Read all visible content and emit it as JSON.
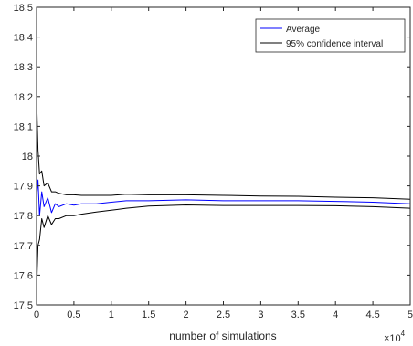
{
  "chart_data": {
    "type": "line",
    "xlabel": "number of simulations",
    "x_exponent_label": "×10",
    "x_exponent_power": "4",
    "xlim": [
      0,
      5
    ],
    "ylim": [
      17.5,
      18.5
    ],
    "xticks": [
      "0",
      "0.5",
      "1",
      "1.5",
      "2",
      "2.5",
      "3",
      "3.5",
      "4",
      "4.5",
      "5"
    ],
    "yticks": [
      "17.5",
      "17.6",
      "17.7",
      "17.8",
      "17.9",
      "18",
      "18.1",
      "18.2",
      "18.3",
      "18.4",
      "18.5"
    ],
    "grid": false,
    "legend_position": "top-right",
    "series": [
      {
        "name": "Average",
        "color": "#0000ff",
        "x": [
          0.0,
          0.02,
          0.04,
          0.07,
          0.1,
          0.15,
          0.2,
          0.25,
          0.3,
          0.4,
          0.5,
          0.6,
          0.8,
          1.0,
          1.2,
          1.5,
          2.0,
          2.5,
          3.0,
          3.5,
          4.0,
          4.5,
          5.0
        ],
        "values": [
          17.86,
          17.92,
          17.8,
          17.88,
          17.83,
          17.86,
          17.81,
          17.84,
          17.83,
          17.84,
          17.835,
          17.84,
          17.84,
          17.845,
          17.85,
          17.85,
          17.853,
          17.85,
          17.85,
          17.85,
          17.848,
          17.845,
          17.84
        ]
      },
      {
        "name": "95% confidence interval",
        "color": "#000000",
        "x": [
          0.0,
          0.02,
          0.04,
          0.07,
          0.1,
          0.15,
          0.2,
          0.25,
          0.3,
          0.4,
          0.5,
          0.6,
          0.8,
          1.0,
          1.2,
          1.5,
          2.0,
          2.5,
          3.0,
          3.5,
          4.0,
          4.5,
          5.0
        ],
        "values": [
          18.2,
          18.02,
          17.94,
          17.95,
          17.9,
          17.91,
          17.88,
          17.88,
          17.875,
          17.87,
          17.87,
          17.868,
          17.868,
          17.868,
          17.872,
          17.87,
          17.87,
          17.868,
          17.866,
          17.865,
          17.862,
          17.86,
          17.855
        ]
      },
      {
        "name": "",
        "color": "#000000",
        "x": [
          0.0,
          0.02,
          0.04,
          0.07,
          0.1,
          0.15,
          0.2,
          0.25,
          0.3,
          0.4,
          0.5,
          0.6,
          0.8,
          1.0,
          1.2,
          1.5,
          2.0,
          2.5,
          3.0,
          3.5,
          4.0,
          4.5,
          5.0
        ],
        "values": [
          17.55,
          17.7,
          17.72,
          17.79,
          17.76,
          17.8,
          17.77,
          17.79,
          17.79,
          17.8,
          17.8,
          17.805,
          17.812,
          17.818,
          17.825,
          17.832,
          17.836,
          17.834,
          17.834,
          17.834,
          17.833,
          17.83,
          17.825
        ]
      }
    ]
  }
}
